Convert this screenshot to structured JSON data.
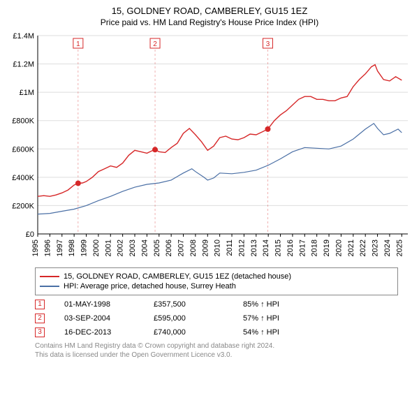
{
  "title": "15, GOLDNEY ROAD, CAMBERLEY, GU15 1EZ",
  "subtitle": "Price paid vs. HM Land Registry's House Price Index (HPI)",
  "chart": {
    "type": "line",
    "background_color": "#ffffff",
    "axis_color": "#000000",
    "grid_color": "#dddddd",
    "xlim": [
      1995,
      2025.5
    ],
    "ylim": [
      0,
      1400000
    ],
    "ytick_step": 200000,
    "yticks": [
      {
        "v": 0,
        "label": "£0"
      },
      {
        "v": 200000,
        "label": "£200K"
      },
      {
        "v": 400000,
        "label": "£400K"
      },
      {
        "v": 600000,
        "label": "£600K"
      },
      {
        "v": 800000,
        "label": "£800K"
      },
      {
        "v": 1000000,
        "label": "£1M"
      },
      {
        "v": 1200000,
        "label": "£1.2M"
      },
      {
        "v": 1400000,
        "label": "£1.4M"
      }
    ],
    "xticks": [
      1995,
      1996,
      1997,
      1998,
      1999,
      2000,
      2001,
      2002,
      2003,
      2004,
      2005,
      2006,
      2007,
      2008,
      2009,
      2010,
      2011,
      2012,
      2013,
      2014,
      2015,
      2016,
      2017,
      2018,
      2019,
      2020,
      2021,
      2022,
      2023,
      2024,
      2025
    ],
    "label_fontsize": 11,
    "series": [
      {
        "name": "15, GOLDNEY ROAD, CAMBERLEY, GU15 1EZ (detached house)",
        "color": "#d62728",
        "line_width": 1.4,
        "data": [
          [
            1995.0,
            265000
          ],
          [
            1995.5,
            270000
          ],
          [
            1996.0,
            265000
          ],
          [
            1996.5,
            275000
          ],
          [
            1997.0,
            290000
          ],
          [
            1997.5,
            310000
          ],
          [
            1998.0,
            345000
          ],
          [
            1998.33,
            357500
          ],
          [
            1998.7,
            360000
          ],
          [
            1999.0,
            370000
          ],
          [
            1999.5,
            400000
          ],
          [
            2000.0,
            440000
          ],
          [
            2000.5,
            460000
          ],
          [
            2001.0,
            480000
          ],
          [
            2001.5,
            470000
          ],
          [
            2002.0,
            500000
          ],
          [
            2002.5,
            555000
          ],
          [
            2003.0,
            590000
          ],
          [
            2003.5,
            580000
          ],
          [
            2004.0,
            570000
          ],
          [
            2004.5,
            590000
          ],
          [
            2004.67,
            595000
          ],
          [
            2005.0,
            580000
          ],
          [
            2005.5,
            575000
          ],
          [
            2006.0,
            610000
          ],
          [
            2006.5,
            640000
          ],
          [
            2007.0,
            710000
          ],
          [
            2007.5,
            745000
          ],
          [
            2008.0,
            700000
          ],
          [
            2008.5,
            650000
          ],
          [
            2009.0,
            590000
          ],
          [
            2009.5,
            620000
          ],
          [
            2010.0,
            680000
          ],
          [
            2010.5,
            690000
          ],
          [
            2011.0,
            670000
          ],
          [
            2011.5,
            665000
          ],
          [
            2012.0,
            680000
          ],
          [
            2012.5,
            705000
          ],
          [
            2013.0,
            700000
          ],
          [
            2013.5,
            720000
          ],
          [
            2013.96,
            740000
          ],
          [
            2014.0,
            745000
          ],
          [
            2014.5,
            800000
          ],
          [
            2015.0,
            840000
          ],
          [
            2015.5,
            870000
          ],
          [
            2016.0,
            910000
          ],
          [
            2016.5,
            950000
          ],
          [
            2017.0,
            970000
          ],
          [
            2017.5,
            970000
          ],
          [
            2018.0,
            950000
          ],
          [
            2018.5,
            950000
          ],
          [
            2019.0,
            940000
          ],
          [
            2019.5,
            940000
          ],
          [
            2020.0,
            960000
          ],
          [
            2020.5,
            970000
          ],
          [
            2021.0,
            1040000
          ],
          [
            2021.5,
            1090000
          ],
          [
            2022.0,
            1130000
          ],
          [
            2022.5,
            1180000
          ],
          [
            2022.8,
            1195000
          ],
          [
            2023.0,
            1150000
          ],
          [
            2023.5,
            1090000
          ],
          [
            2024.0,
            1080000
          ],
          [
            2024.5,
            1110000
          ],
          [
            2025.0,
            1085000
          ]
        ]
      },
      {
        "name": "HPI: Average price, detached house, Surrey Heath",
        "color": "#4a6fa5",
        "line_width": 1.2,
        "data": [
          [
            1995.0,
            140000
          ],
          [
            1996.0,
            145000
          ],
          [
            1997.0,
            160000
          ],
          [
            1998.0,
            175000
          ],
          [
            1999.0,
            200000
          ],
          [
            2000.0,
            235000
          ],
          [
            2001.0,
            265000
          ],
          [
            2002.0,
            300000
          ],
          [
            2003.0,
            330000
          ],
          [
            2004.0,
            350000
          ],
          [
            2005.0,
            360000
          ],
          [
            2006.0,
            380000
          ],
          [
            2007.0,
            430000
          ],
          [
            2007.7,
            460000
          ],
          [
            2008.0,
            440000
          ],
          [
            2008.7,
            400000
          ],
          [
            2009.0,
            380000
          ],
          [
            2009.5,
            395000
          ],
          [
            2010.0,
            430000
          ],
          [
            2011.0,
            425000
          ],
          [
            2012.0,
            435000
          ],
          [
            2013.0,
            450000
          ],
          [
            2014.0,
            485000
          ],
          [
            2015.0,
            530000
          ],
          [
            2016.0,
            580000
          ],
          [
            2017.0,
            610000
          ],
          [
            2018.0,
            605000
          ],
          [
            2019.0,
            600000
          ],
          [
            2020.0,
            620000
          ],
          [
            2021.0,
            670000
          ],
          [
            2022.0,
            740000
          ],
          [
            2022.7,
            780000
          ],
          [
            2023.0,
            745000
          ],
          [
            2023.5,
            700000
          ],
          [
            2024.0,
            710000
          ],
          [
            2024.7,
            740000
          ],
          [
            2025.0,
            715000
          ]
        ]
      }
    ],
    "sale_markers": {
      "color": "#d62728",
      "fill": "#ffffff",
      "radius": 4,
      "box_size": 14,
      "font_size": 10,
      "points": [
        {
          "n": "1",
          "x": 1998.33,
          "y": 357500,
          "date": "01-MAY-1998",
          "price": "£357,500",
          "pct": "85% ↑ HPI"
        },
        {
          "n": "2",
          "x": 2004.67,
          "y": 595000,
          "date": "03-SEP-2004",
          "price": "£595,000",
          "pct": "57% ↑ HPI"
        },
        {
          "n": "3",
          "x": 2013.96,
          "y": 740000,
          "date": "16-DEC-2013",
          "price": "£740,000",
          "pct": "54% ↑ HPI"
        }
      ]
    }
  },
  "legend": {
    "border_color": "#888888",
    "font_size": 11,
    "items": [
      {
        "color": "#d62728",
        "label": "15, GOLDNEY ROAD, CAMBERLEY, GU15 1EZ (detached house)"
      },
      {
        "color": "#4a6fa5",
        "label": "HPI: Average price, detached house, Surrey Heath"
      }
    ]
  },
  "footer": {
    "color": "#888888",
    "font_size": 10,
    "line1": "Contains HM Land Registry data © Crown copyright and database right 2024.",
    "line2": "This data is licensed under the Open Government Licence v3.0."
  }
}
